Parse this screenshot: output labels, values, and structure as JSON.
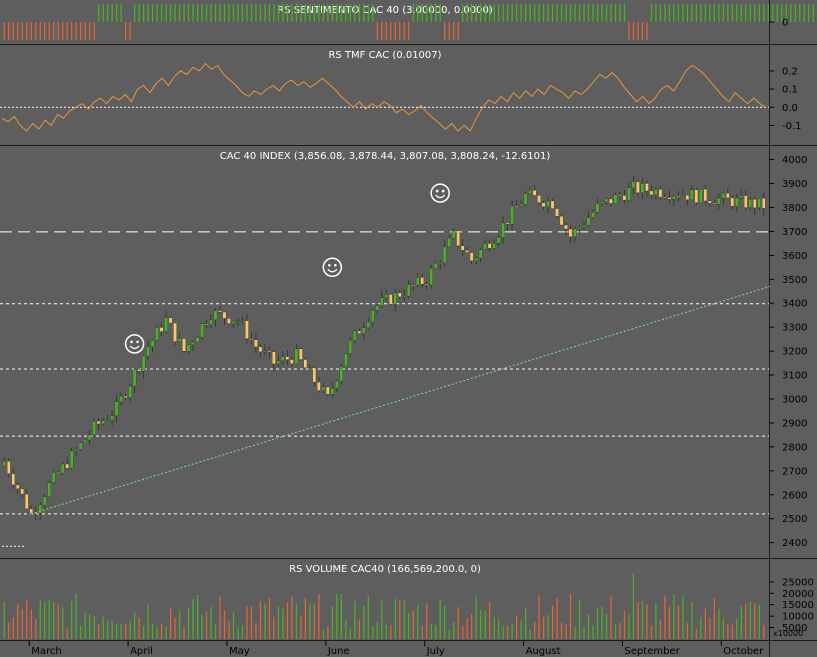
{
  "panels": {
    "sentiment_title": "RS SENTIMENTO CAC 40 (3.00000, 0.0000)",
    "tmf_title": "RS TMF CAC (0.01007)",
    "price_title": "CAC 40 INDEX (3,856.08, 3,878.44, 3,807.08, 3,808.24, -12.6101)",
    "volume_title": "RS VOLUME CAC40 (166,569,200.0, 0)",
    "volume_multiplier_label": "x10000"
  },
  "chart_data": [
    {
      "type": "bar",
      "title": "RS SENTIMENTO CAC 40 (3.00000, 0.0000)",
      "yticks": [
        "0"
      ],
      "ylim": [
        -1,
        1
      ],
      "colors": {
        "positive": "#4caf27",
        "negative": "#e0653a"
      },
      "values": [
        -1,
        -1,
        -1,
        -1,
        -1,
        -1,
        -1,
        -1,
        -1,
        -1,
        -1,
        -1,
        -1,
        -1,
        -1,
        -1,
        -1,
        -1,
        -1,
        -1,
        -1,
        1,
        1,
        1,
        1,
        1,
        1,
        -1,
        -1,
        1,
        1,
        1,
        1,
        1,
        1,
        1,
        1,
        1,
        1,
        1,
        1,
        1,
        1,
        1,
        1,
        1,
        1,
        1,
        1,
        1,
        1,
        1,
        1,
        1,
        1,
        1,
        1,
        1,
        1,
        1,
        1,
        1,
        1,
        1,
        1,
        1,
        1,
        1,
        1,
        1,
        1,
        1,
        1,
        1,
        1,
        1,
        1,
        1,
        1,
        1,
        1,
        1,
        1,
        -1,
        -1,
        -1,
        -1,
        -1,
        -1,
        -1,
        -1,
        1,
        1,
        1,
        1,
        1,
        1,
        1,
        -1,
        -1,
        -1,
        -1,
        1,
        1,
        1,
        1,
        1,
        1,
        1,
        1,
        1,
        1,
        1,
        1,
        1,
        1,
        1,
        1,
        1,
        1,
        1,
        1,
        1,
        1,
        1,
        1,
        1,
        1,
        1,
        1,
        1,
        1,
        1,
        1,
        1,
        1,
        1,
        1,
        1,
        -1,
        -1,
        -1,
        -1,
        -1,
        1,
        1,
        1,
        1,
        1,
        1,
        1,
        1,
        1,
        1,
        1,
        1,
        1,
        1,
        1,
        1,
        1,
        1,
        1,
        1,
        1,
        1,
        1,
        1,
        1,
        1,
        1,
        1,
        1,
        1,
        1,
        1,
        1,
        1,
        1,
        1,
        1,
        1,
        1,
        1,
        1,
        1,
        1,
        1,
        1,
        1,
        1,
        1,
        1,
        1
      ]
    },
    {
      "type": "line",
      "title": "RS TMF CAC (0.01007)",
      "yticks": [
        "0.2",
        "0.1",
        "0.0",
        "-0.1"
      ],
      "ylim": [
        -0.18,
        0.26
      ],
      "reference_line": 0.0,
      "color": "#e8963a",
      "values": [
        -0.06,
        -0.08,
        -0.05,
        -0.1,
        -0.13,
        -0.09,
        -0.12,
        -0.07,
        -0.1,
        -0.04,
        -0.06,
        -0.02,
        0.0,
        0.02,
        -0.01,
        0.03,
        0.05,
        0.02,
        0.06,
        0.04,
        0.07,
        0.03,
        0.1,
        0.12,
        0.08,
        0.13,
        0.16,
        0.12,
        0.17,
        0.2,
        0.18,
        0.22,
        0.2,
        0.24,
        0.21,
        0.23,
        0.18,
        0.15,
        0.12,
        0.08,
        0.06,
        0.09,
        0.07,
        0.1,
        0.12,
        0.09,
        0.13,
        0.15,
        0.12,
        0.14,
        0.11,
        0.13,
        0.16,
        0.13,
        0.1,
        0.06,
        0.03,
        0.0,
        0.03,
        -0.01,
        0.02,
        0.0,
        0.03,
        0.01,
        -0.03,
        -0.01,
        -0.04,
        -0.02,
        0.01,
        -0.03,
        -0.06,
        -0.09,
        -0.12,
        -0.09,
        -0.13,
        -0.1,
        -0.13,
        -0.06,
        0.0,
        0.04,
        0.02,
        0.06,
        0.03,
        0.08,
        0.05,
        0.09,
        0.06,
        0.1,
        0.07,
        0.12,
        0.1,
        0.08,
        0.05,
        0.09,
        0.07,
        0.1,
        0.14,
        0.18,
        0.16,
        0.19,
        0.16,
        0.11,
        0.07,
        0.03,
        0.06,
        0.02,
        0.05,
        0.1,
        0.12,
        0.09,
        0.14,
        0.2,
        0.23,
        0.21,
        0.18,
        0.14,
        0.1,
        0.06,
        0.03,
        0.08,
        0.05,
        0.02,
        0.05,
        0.02,
        0.0
      ],
      "last_value": 0.01007
    },
    {
      "type": "candlestick",
      "title": "CAC 40 INDEX (3,856.08, 3,878.44, 3,807.08, 3,808.24, -12.6101)",
      "yticks": [
        "4000",
        "3900",
        "3800",
        "3700",
        "3600",
        "3500",
        "3400",
        "3300",
        "3200",
        "3100",
        "3000",
        "2900",
        "2800",
        "2700",
        "2600",
        "2500",
        "2400"
      ],
      "ylim": [
        2340,
        4040
      ],
      "colors": {
        "up": "#4caf27",
        "down": "#f6c867",
        "wick": "#2e2e2e"
      },
      "horizontal_levels": [
        3698,
        3398,
        3125,
        2845,
        2520
      ],
      "trendline": {
        "from": [
          6,
          2520
        ],
        "to": [
          127,
          3470
        ]
      },
      "smiley_markers_at": [
        [
          29,
          3230
        ],
        [
          73,
          3550
        ],
        [
          97,
          3860
        ]
      ],
      "last": {
        "open": 3856.08,
        "high": 3878.44,
        "low": 3807.08,
        "close": 3808.24,
        "change": -12.6101
      }
    },
    {
      "type": "bar",
      "title": "RS VOLUME CAC40 (166,569,200.0, 0)",
      "yticks": [
        "25000",
        "20000",
        "15000",
        "10000",
        "5000"
      ],
      "ylim": [
        0,
        28000
      ],
      "colors": {
        "up": "#4caf27",
        "down": "#e0653a"
      }
    }
  ],
  "x_axis": {
    "labels": [
      "March",
      "April",
      "May",
      "June",
      "July",
      "August",
      "September",
      "October"
    ],
    "bars_per_month": 22
  }
}
